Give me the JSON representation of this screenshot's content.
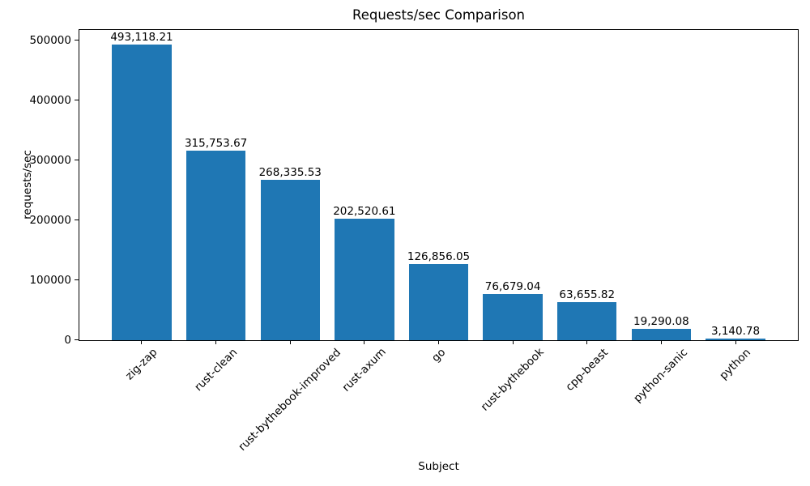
{
  "chart_data": {
    "type": "bar",
    "title": "Requests/sec Comparison",
    "xlabel": "Subject",
    "ylabel": "requests/sec",
    "categories": [
      "zig-zap",
      "rust-clean",
      "rust-bythebook-improved",
      "rust-axum",
      "go",
      "rust-bythebook",
      "cpp-beast",
      "python-sanic",
      "python"
    ],
    "values": [
      493118.21,
      315753.67,
      268335.53,
      202520.61,
      126856.05,
      76679.04,
      63655.82,
      19290.08,
      3140.78
    ],
    "value_labels": [
      "493,118.21",
      "315,753.67",
      "268,335.53",
      "202,520.61",
      "126,856.05",
      "76,679.04",
      "63,655.82",
      "19,290.08",
      "3,140.78"
    ],
    "yticks": [
      0,
      100000,
      200000,
      300000,
      400000,
      500000
    ],
    "ytick_labels": [
      "0",
      "100000",
      "200000",
      "300000",
      "400000",
      "500000"
    ],
    "ylim": [
      0,
      517774.12
    ],
    "bar_color": "#1f77b4",
    "axis_color": "#000000",
    "background_color": "#ffffff",
    "grid": false
  }
}
